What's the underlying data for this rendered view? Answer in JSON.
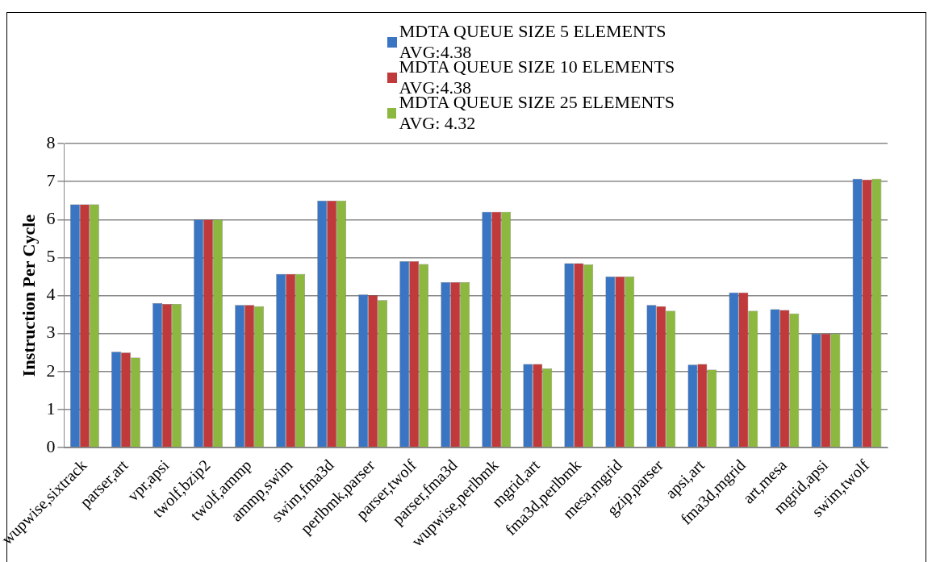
{
  "chart_data": {
    "type": "bar",
    "ylabel": "Instruction Per Cycle",
    "categories": [
      "wupwise,sixtrack",
      "parser,art",
      "vpr,apsi",
      "twolf,bzip2",
      "twolf,ammp",
      "ammp,swim",
      "swim,fma3d",
      "perlbmk,parser",
      "parser,twolf",
      "parser,fma3d",
      "wupwise,perlbmk",
      "mgrid,art",
      "fma3d,perlbmk",
      "mesa,mgrid",
      "gzip,parser",
      "apsi,art",
      "fma3d,mgrid",
      "art,mesa",
      "mgrid,apsi",
      "swim,twolf"
    ],
    "series": [
      {
        "name": "MDTA QUEUE SIZE 5 ELEMENTS AVG:4.38",
        "color": "#3a75c4",
        "values": [
          6.4,
          2.52,
          3.8,
          6.0,
          3.75,
          4.57,
          6.5,
          4.03,
          4.9,
          4.35,
          6.2,
          2.2,
          4.85,
          4.5,
          3.75,
          2.18,
          4.08,
          3.64,
          3.0,
          7.07
        ]
      },
      {
        "name": "MDTA QUEUE SIZE 10 ELEMENTS AVG:4.38",
        "color": "#c0393b",
        "values": [
          6.4,
          2.5,
          3.78,
          6.0,
          3.75,
          4.57,
          6.5,
          4.01,
          4.9,
          4.35,
          6.2,
          2.2,
          4.85,
          4.5,
          3.72,
          2.2,
          4.08,
          3.62,
          3.0,
          7.05
        ]
      },
      {
        "name": "MDTA QUEUE SIZE 25 ELEMENTS AVG: 4.32",
        "color": "#8db83f",
        "values": [
          6.4,
          2.37,
          3.78,
          6.0,
          3.72,
          4.57,
          6.5,
          3.88,
          4.83,
          4.35,
          6.2,
          2.08,
          4.82,
          4.5,
          3.6,
          2.05,
          3.6,
          3.53,
          3.0,
          7.07
        ]
      }
    ],
    "ylim": [
      0,
      8
    ],
    "yticks": [
      0,
      1,
      2,
      3,
      4,
      5,
      6,
      7,
      8
    ],
    "grid": "y",
    "legend": "top"
  }
}
